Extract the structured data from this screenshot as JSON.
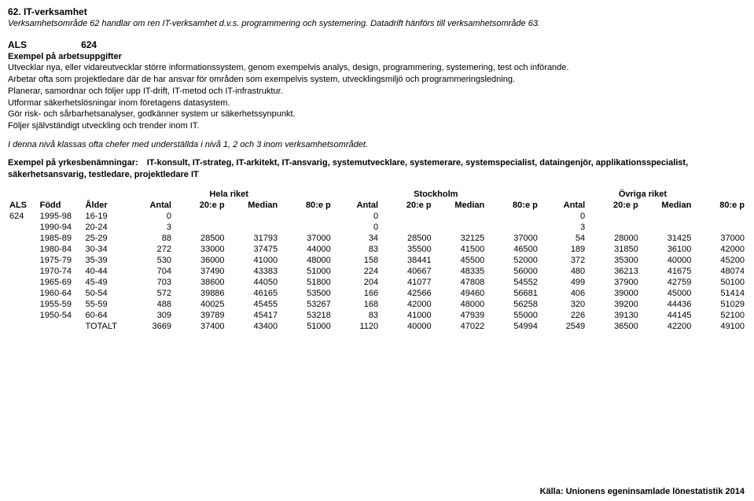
{
  "header": {
    "title": "62. IT-verksamhet",
    "subtitle": "Verksamhetsområde 62 handlar om ren IT-verksamhet d.v.s. programmering och systemering. Datadrift hänförs till verksamhetsområde 63."
  },
  "als": {
    "label": "ALS",
    "code": "624"
  },
  "example_tasks": {
    "label": "Exempel på arbetsuppgifter",
    "lines": [
      "Utvecklar nya, eller vidareutvecklar större informationssystem, genom exempelvis analys, design, programmering, systemering, test och införande.",
      "Arbetar ofta som projektledare där de har ansvar för områden som exempelvis system, utvecklingsmiljö och programmeringsledning.",
      "Planerar, samordnar och följer upp IT-drift, IT-metod och IT-infrastruktur.",
      "Utformar säkerhetslösningar inom företagens datasystem.",
      "Gör risk- och sårbarhetsanalyser, godkänner system ur säkerhetssynpunkt.",
      "Följer självständigt utveckling och trender inom IT."
    ]
  },
  "note": "I denna nivå klassas ofta chefer med underställda i nivå 1, 2 och 3 inom verksamhetsområdet.",
  "profession": {
    "label": "Exempel på yrkesbenämningar:",
    "value": "IT-konsult, IT-strateg, IT-arkitekt, IT-ansvarig, systemutvecklare, systemerare, systemspecialist, dataingenjör, applikationsspecialist, säkerhetsansvarig, testledare, projektledare IT"
  },
  "regions": {
    "r1": "Hela riket",
    "r2": "Stockholm",
    "r3": "Övriga riket"
  },
  "columns": {
    "als": "ALS",
    "fodd": "Född",
    "alder": "Ålder",
    "antal": "Antal",
    "p20": "20:e p",
    "median": "Median",
    "p80": "80:e p"
  },
  "table": {
    "als_code": "624",
    "rows": [
      {
        "fodd": "1995-98",
        "alder": "16-19",
        "a1": "0",
        "p1": "",
        "m1": "",
        "q1": "",
        "a2": "0",
        "p2": "",
        "m2": "",
        "q2": "",
        "a3": "0",
        "p3": "",
        "m3": "",
        "q3": ""
      },
      {
        "fodd": "1990-94",
        "alder": "20-24",
        "a1": "3",
        "p1": "",
        "m1": "",
        "q1": "",
        "a2": "0",
        "p2": "",
        "m2": "",
        "q2": "",
        "a3": "3",
        "p3": "",
        "m3": "",
        "q3": ""
      },
      {
        "fodd": "1985-89",
        "alder": "25-29",
        "a1": "88",
        "p1": "28500",
        "m1": "31793",
        "q1": "37000",
        "a2": "34",
        "p2": "28500",
        "m2": "32125",
        "q2": "37000",
        "a3": "54",
        "p3": "28000",
        "m3": "31425",
        "q3": "37000"
      },
      {
        "fodd": "1980-84",
        "alder": "30-34",
        "a1": "272",
        "p1": "33000",
        "m1": "37475",
        "q1": "44000",
        "a2": "83",
        "p2": "35500",
        "m2": "41500",
        "q2": "46500",
        "a3": "189",
        "p3": "31850",
        "m3": "36100",
        "q3": "42000"
      },
      {
        "fodd": "1975-79",
        "alder": "35-39",
        "a1": "530",
        "p1": "36000",
        "m1": "41000",
        "q1": "48000",
        "a2": "158",
        "p2": "38441",
        "m2": "45500",
        "q2": "52000",
        "a3": "372",
        "p3": "35300",
        "m3": "40000",
        "q3": "45200"
      },
      {
        "fodd": "1970-74",
        "alder": "40-44",
        "a1": "704",
        "p1": "37490",
        "m1": "43383",
        "q1": "51000",
        "a2": "224",
        "p2": "40667",
        "m2": "48335",
        "q2": "56000",
        "a3": "480",
        "p3": "36213",
        "m3": "41675",
        "q3": "48074"
      },
      {
        "fodd": "1965-69",
        "alder": "45-49",
        "a1": "703",
        "p1": "38600",
        "m1": "44050",
        "q1": "51800",
        "a2": "204",
        "p2": "41077",
        "m2": "47808",
        "q2": "54552",
        "a3": "499",
        "p3": "37900",
        "m3": "42759",
        "q3": "50100"
      },
      {
        "fodd": "1960-64",
        "alder": "50-54",
        "a1": "572",
        "p1": "39886",
        "m1": "46165",
        "q1": "53500",
        "a2": "166",
        "p2": "42566",
        "m2": "49460",
        "q2": "56681",
        "a3": "406",
        "p3": "39000",
        "m3": "45000",
        "q3": "51414"
      },
      {
        "fodd": "1955-59",
        "alder": "55-59",
        "a1": "488",
        "p1": "40025",
        "m1": "45455",
        "q1": "53267",
        "a2": "168",
        "p2": "42000",
        "m2": "48000",
        "q2": "56258",
        "a3": "320",
        "p3": "39200",
        "m3": "44436",
        "q3": "51029"
      },
      {
        "fodd": "1950-54",
        "alder": "60-64",
        "a1": "309",
        "p1": "39789",
        "m1": "45417",
        "q1": "53218",
        "a2": "83",
        "p2": "41000",
        "m2": "47939",
        "q2": "55000",
        "a3": "226",
        "p3": "39130",
        "m3": "44145",
        "q3": "52100"
      },
      {
        "fodd": "",
        "alder": "TOTALT",
        "a1": "3669",
        "p1": "37400",
        "m1": "43400",
        "q1": "51000",
        "a2": "1120",
        "p2": "40000",
        "m2": "47022",
        "q2": "54994",
        "a3": "2549",
        "p3": "36500",
        "m3": "42200",
        "q3": "49100"
      }
    ]
  },
  "footer": "Källa: Unionens egeninsamlade lönestatistik 2014"
}
